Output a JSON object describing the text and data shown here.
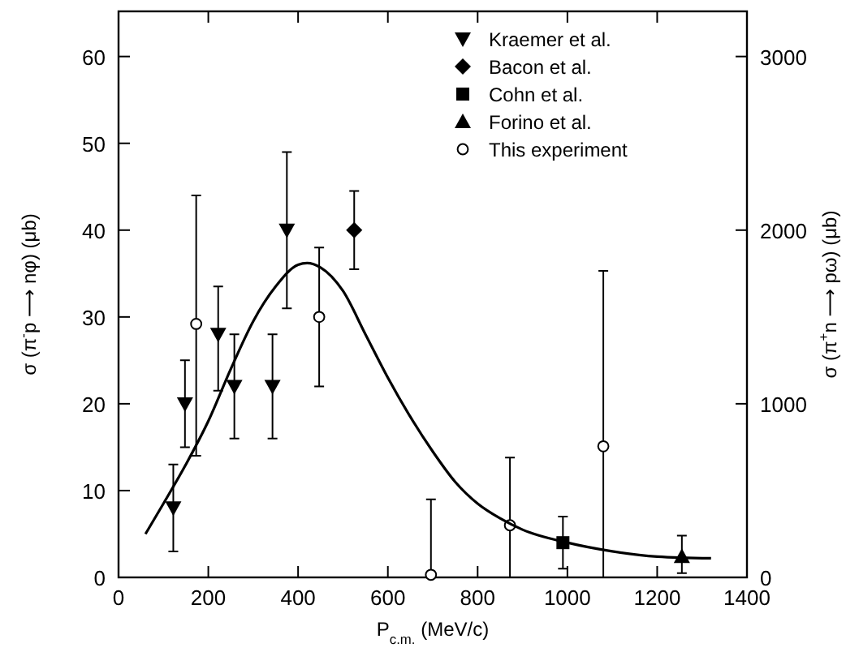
{
  "chart_data": {
    "type": "scatter",
    "xlabel": "P$_{c.m.}$   (MeV/c)",
    "ylabel": "σ (π$^{-}$p ⟶ nφ)   (μb)",
    "y2label": "σ (π$^{+}$n ⟶ pω)   (μb)",
    "xlim": [
      0,
      1400
    ],
    "xticks": [
      0,
      200,
      400,
      600,
      800,
      1000,
      1200,
      1400
    ],
    "ylim": [
      0,
      65.2
    ],
    "yticks": [
      0,
      10,
      20,
      30,
      40,
      50,
      60
    ],
    "y2lim": [
      0,
      3260
    ],
    "y2ticks": [
      0,
      1000,
      2000,
      3000
    ],
    "legend": "top right",
    "grid": false,
    "series": [
      {
        "name": "Kraemer et al.",
        "marker": "triangle-down",
        "color": "#000000",
        "x": [
          122,
          148,
          222,
          258,
          343,
          375
        ],
        "values": [
          8,
          20,
          28,
          22,
          22,
          40
        ],
        "errors": [
          [
            3,
            13
          ],
          [
            15,
            25
          ],
          [
            21.5,
            33.5
          ],
          [
            16,
            28
          ],
          [
            16,
            28
          ],
          [
            31,
            49
          ]
        ]
      },
      {
        "name": "Bacon et al.",
        "marker": "diamond",
        "color": "#000000",
        "x": [
          525
        ],
        "values": [
          40
        ],
        "errors": [
          [
            35.5,
            44.5
          ]
        ]
      },
      {
        "name": "Cohn et al.",
        "marker": "square",
        "color": "#000000",
        "x": [
          990
        ],
        "values": [
          4
        ],
        "errors": [
          [
            1,
            7
          ]
        ]
      },
      {
        "name": "Forino et al.",
        "marker": "triangle",
        "color": "#000000",
        "x": [
          1255
        ],
        "values": [
          2.4
        ],
        "errors": [
          [
            0.5,
            4.8
          ]
        ]
      },
      {
        "name": "This experiment",
        "marker": "circle",
        "color": "#000000",
        "x": [
          173,
          447,
          696,
          872,
          1080
        ],
        "values": [
          29.2,
          30,
          0.3,
          6,
          15.1
        ],
        "errors": [
          [
            14,
            44
          ],
          [
            22,
            38
          ],
          [
            0,
            9
          ],
          [
            0,
            13.8
          ],
          [
            0,
            35.3
          ]
        ]
      },
      {
        "type": "line",
        "line_style": "solid",
        "color": "#000000",
        "x": [
          60,
          100,
          150,
          200,
          250,
          300,
          350,
          400,
          420,
          450,
          500,
          550,
          600,
          650,
          700,
          750,
          800,
          850,
          900,
          1000,
          1100,
          1200,
          1320
        ],
        "values": [
          5,
          8.5,
          13,
          18,
          24,
          29.5,
          33.5,
          36,
          36.2,
          35.7,
          33,
          28,
          23,
          18.5,
          14.5,
          11,
          8.5,
          6.8,
          5.5,
          4,
          3,
          2.4,
          2.2
        ]
      }
    ]
  }
}
